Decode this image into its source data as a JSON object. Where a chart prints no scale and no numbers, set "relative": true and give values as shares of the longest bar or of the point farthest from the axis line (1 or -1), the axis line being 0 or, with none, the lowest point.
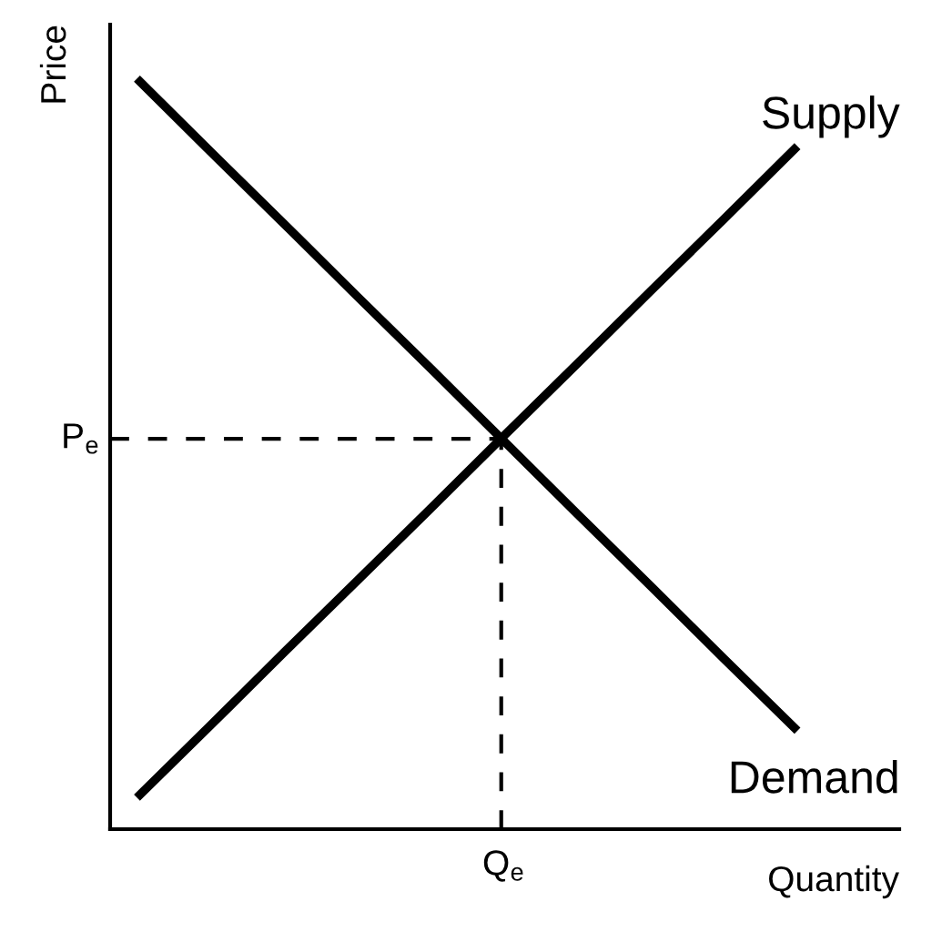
{
  "chart_data": {
    "type": "line",
    "relative": true,
    "xlabel": "Quantity",
    "ylabel": "Price",
    "categories": [
      null,
      null,
      null,
      null,
      null,
      null,
      null,
      null,
      null,
      null
    ],
    "series": [
      {
        "name": "Demand",
        "color": "#000000",
        "values": [
          1,
          0.903,
          0.807,
          0.71,
          0.614,
          0.517,
          0.42,
          0.324,
          0.227,
          0.131
        ]
      },
      {
        "name": "Supply",
        "color": "#000000",
        "values": [
          0.042,
          0.138,
          0.235,
          0.331,
          0.427,
          0.524,
          0.62,
          0.717,
          0.813,
          0.91
        ]
      }
    ],
    "ref_lines": [
      {
        "axis": "y",
        "value": 0.52,
        "label": "P$_{e}$",
        "line_style": "dashed",
        "color": "#000000"
      }
    ],
    "annotations": [
      "Q$_{e}$"
    ],
    "marker": "none",
    "line_style": "solid"
  }
}
